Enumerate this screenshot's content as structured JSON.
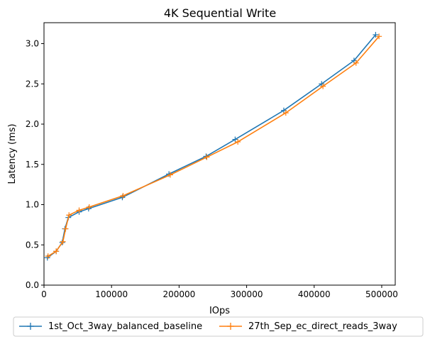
{
  "chart_data": {
    "type": "line",
    "title": "4K  Sequential Write",
    "xlabel": "IOps",
    "ylabel": "Latency (ms)",
    "xlim": [
      0,
      520000
    ],
    "ylim": [
      0,
      3.26
    ],
    "x_ticks": [
      0,
      100000,
      200000,
      300000,
      400000,
      500000
    ],
    "x_tick_labels": [
      "0",
      "100000",
      "200000",
      "300000",
      "400000",
      "500000"
    ],
    "y_ticks": [
      0.0,
      0.5,
      1.0,
      1.5,
      2.0,
      2.5,
      3.0
    ],
    "y_tick_labels": [
      "0.0",
      "0.5",
      "1.0",
      "1.5",
      "2.0",
      "2.5",
      "3.0"
    ],
    "grid": false,
    "legend_position": "bottom-center",
    "series": [
      {
        "name": "1st_Oct_3way_balanced_baseline",
        "color": "#1f77b4",
        "marker": "plus",
        "x": [
          5000,
          18000,
          27000,
          31000,
          36000,
          52000,
          66000,
          116000,
          185000,
          240000,
          283000,
          355000,
          411000,
          459000,
          491000
        ],
        "y": [
          0.34,
          0.42,
          0.53,
          0.7,
          0.84,
          0.91,
          0.95,
          1.09,
          1.38,
          1.6,
          1.81,
          2.17,
          2.5,
          2.79,
          3.11
        ]
      },
      {
        "name": "27th_Sep_ec_direct_reads_3way",
        "color": "#ff7f0e",
        "marker": "plus",
        "x": [
          6000,
          18000,
          28000,
          32000,
          37000,
          52000,
          67000,
          117000,
          187000,
          241000,
          287000,
          358000,
          413000,
          462000,
          496000
        ],
        "y": [
          0.36,
          0.42,
          0.54,
          0.7,
          0.87,
          0.93,
          0.97,
          1.11,
          1.37,
          1.59,
          1.78,
          2.14,
          2.47,
          2.76,
          3.09
        ]
      }
    ]
  }
}
